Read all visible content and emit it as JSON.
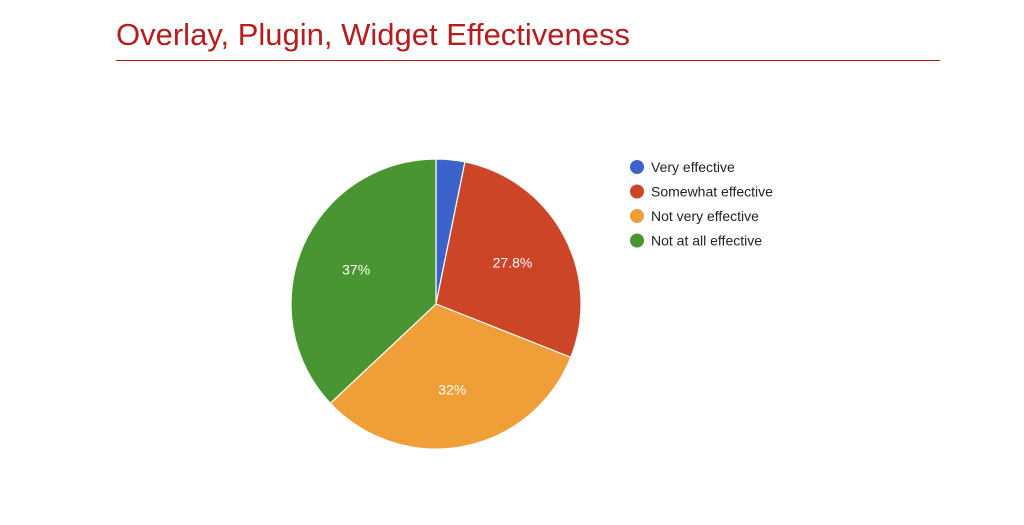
{
  "title": "Overlay, Plugin, Widget Effectiveness",
  "chart_data": {
    "type": "pie",
    "title": "Overlay, Plugin, Widget Effectiveness",
    "start_angle_deg": 0,
    "direction": "clockwise",
    "legend_position": "right",
    "slices": [
      {
        "label": "Very effective",
        "value": 3.2,
        "display": "",
        "color": "#3c63c9"
      },
      {
        "label": "Somewhat effective",
        "value": 27.8,
        "display": "27.8%",
        "color": "#cc4527"
      },
      {
        "label": "Not very effective",
        "value": 32,
        "display": "32%",
        "color": "#f09e37"
      },
      {
        "label": "Not at all effective",
        "value": 37,
        "display": "37%",
        "color": "#489531"
      }
    ]
  }
}
